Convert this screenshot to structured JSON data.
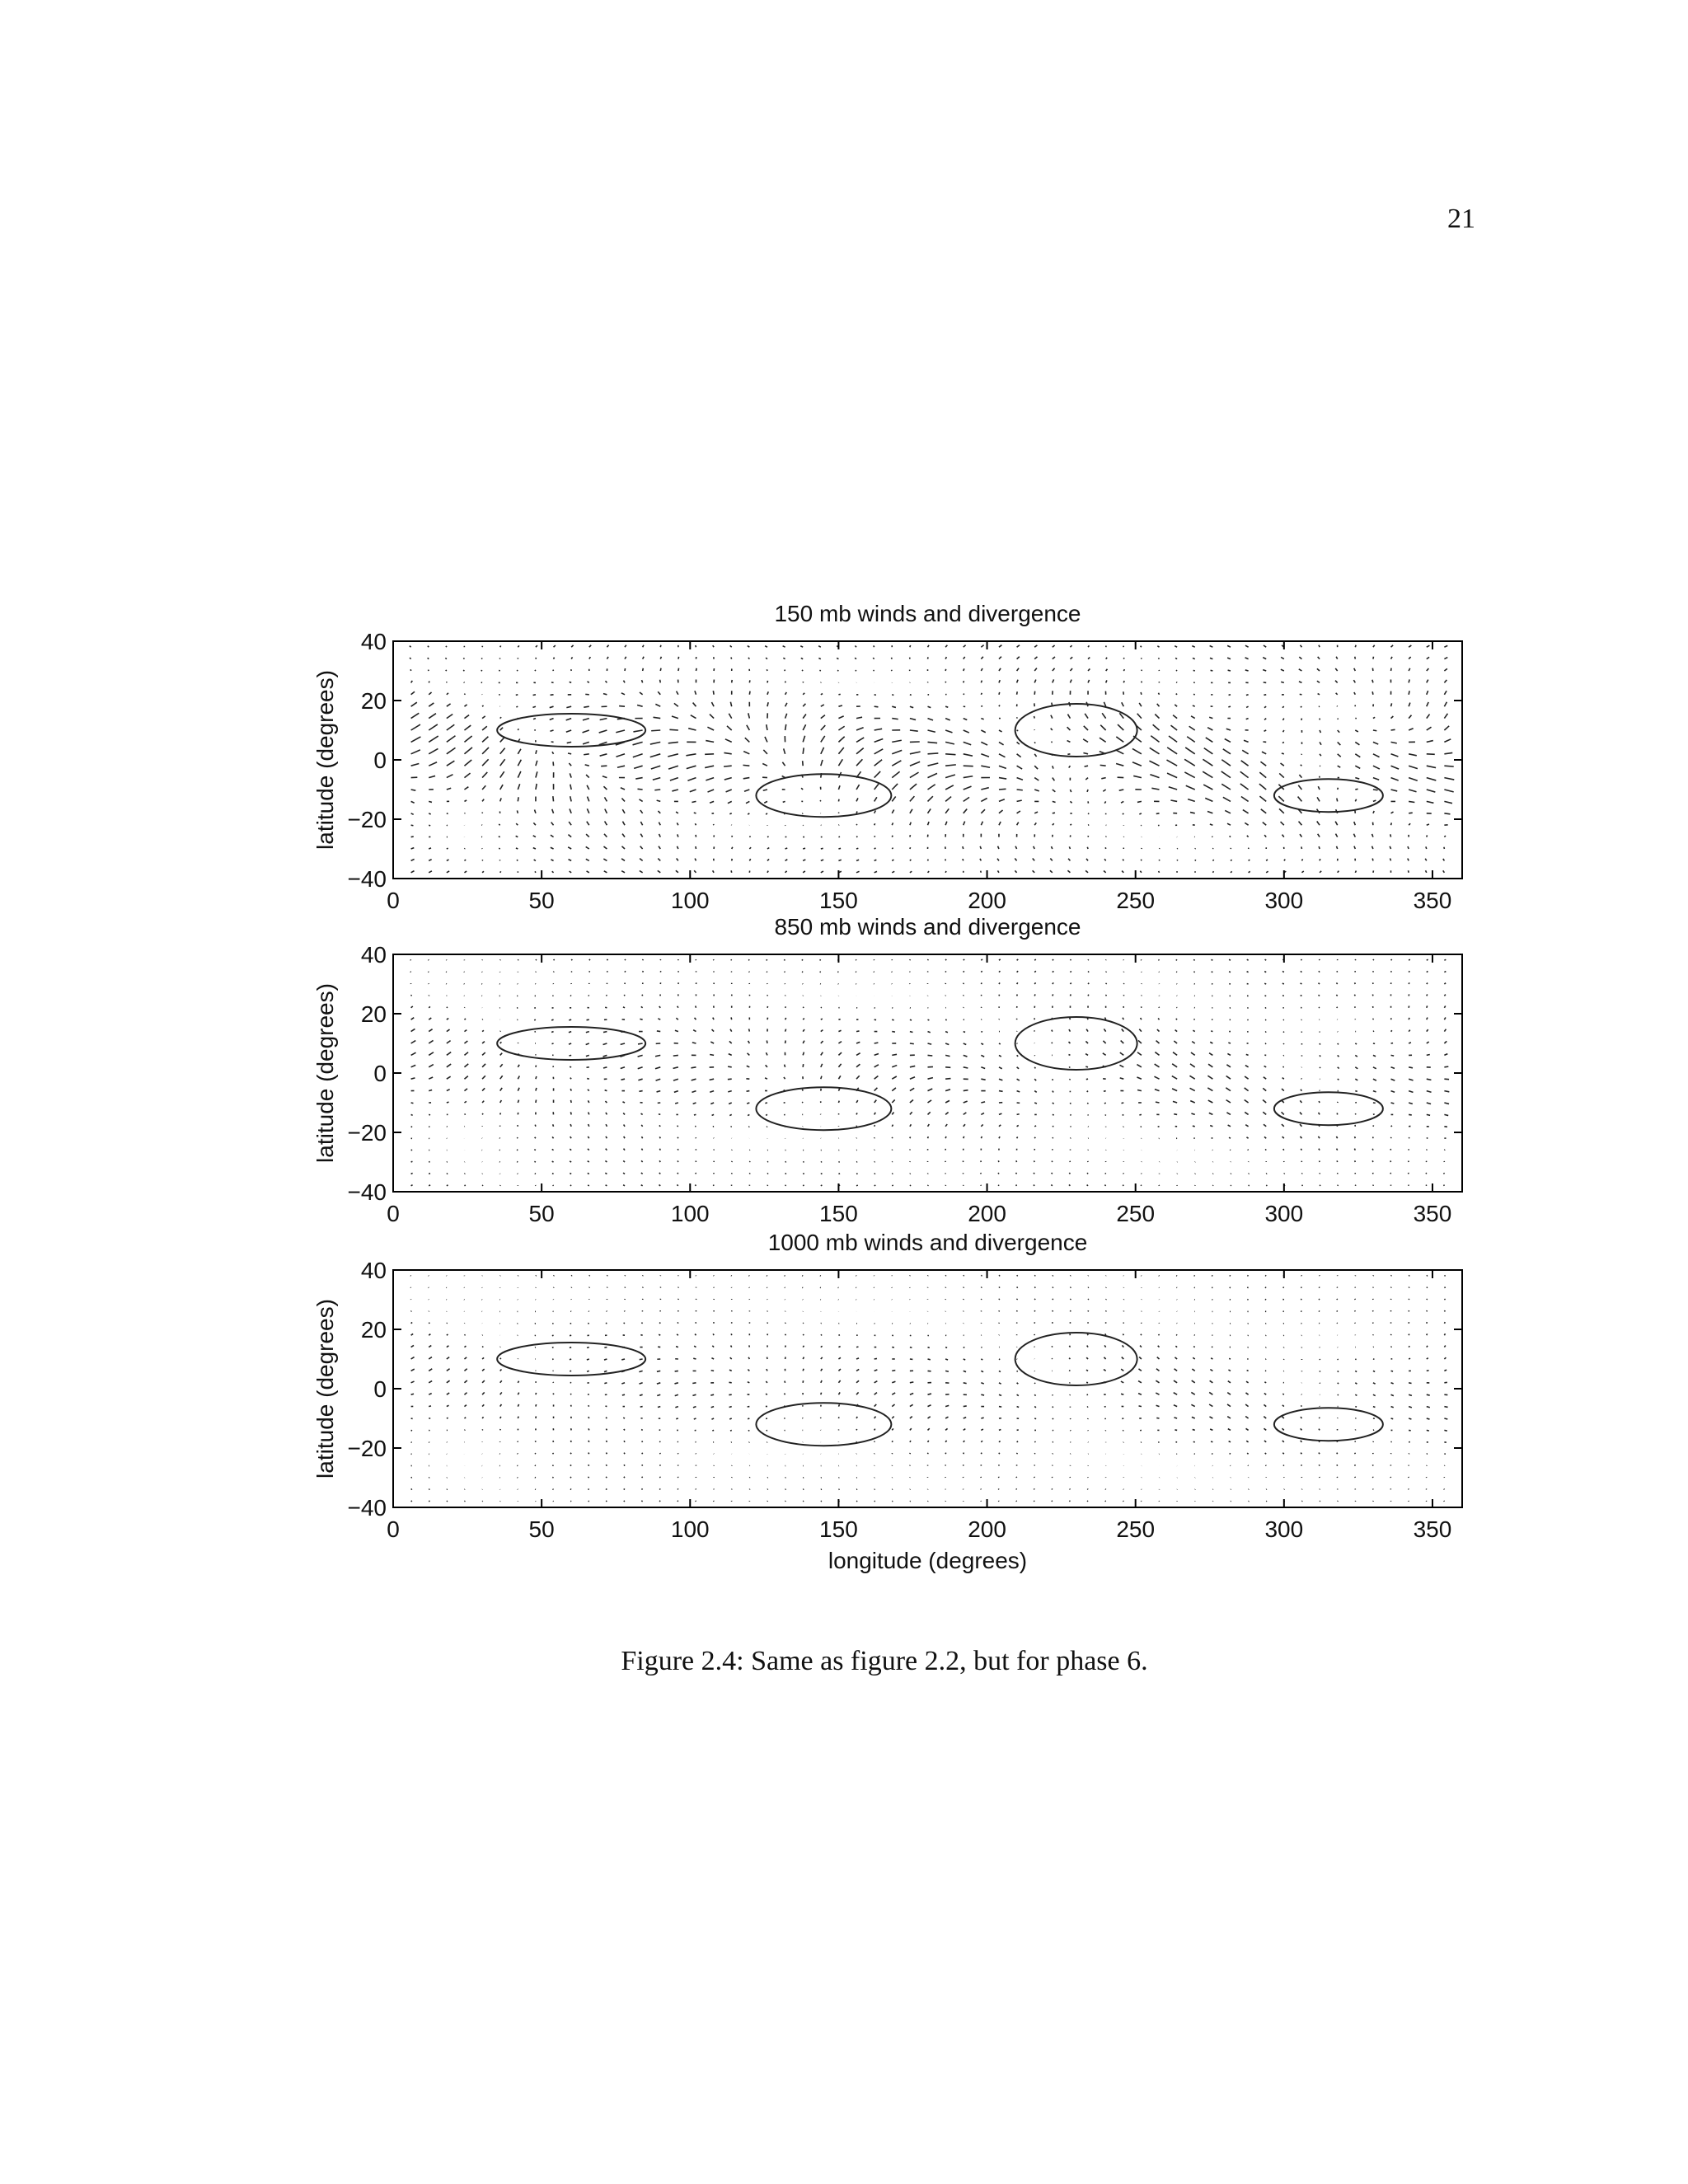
{
  "page_number": "21",
  "caption": "Figure 2.4: Same as figure 2.2, but for phase 6.",
  "chart_data": [
    {
      "type": "quiver",
      "title": "150 mb winds and divergence",
      "ylabel": "latitude (degrees)",
      "xlim": [
        0,
        360
      ],
      "ylim": [
        -40,
        40
      ],
      "xticks": [
        0,
        50,
        100,
        150,
        200,
        250,
        300,
        350
      ],
      "yticks": [
        {
          "value": -40,
          "label": "−40"
        },
        {
          "value": -20,
          "label": "−20"
        },
        0,
        20,
        40
      ]
    },
    {
      "type": "quiver",
      "title": "850 mb winds and divergence",
      "ylabel": "latitude (degrees)",
      "xlim": [
        0,
        360
      ],
      "ylim": [
        -40,
        40
      ],
      "xticks": [
        0,
        50,
        100,
        150,
        200,
        250,
        300,
        350
      ],
      "yticks": [
        {
          "value": -40,
          "label": "−40"
        },
        {
          "value": -20,
          "label": "−20"
        },
        0,
        20,
        40
      ]
    },
    {
      "type": "quiver",
      "title": "1000 mb winds and divergence",
      "ylabel": "latitude (degrees)",
      "xlabel": "longitude (degrees)",
      "xlim": [
        0,
        360
      ],
      "ylim": [
        -40,
        40
      ],
      "xticks": [
        0,
        50,
        100,
        150,
        200,
        250,
        300,
        350
      ],
      "yticks": [
        {
          "value": -40,
          "label": "−40"
        },
        {
          "value": -20,
          "label": "−20"
        },
        0,
        20,
        40
      ]
    }
  ]
}
